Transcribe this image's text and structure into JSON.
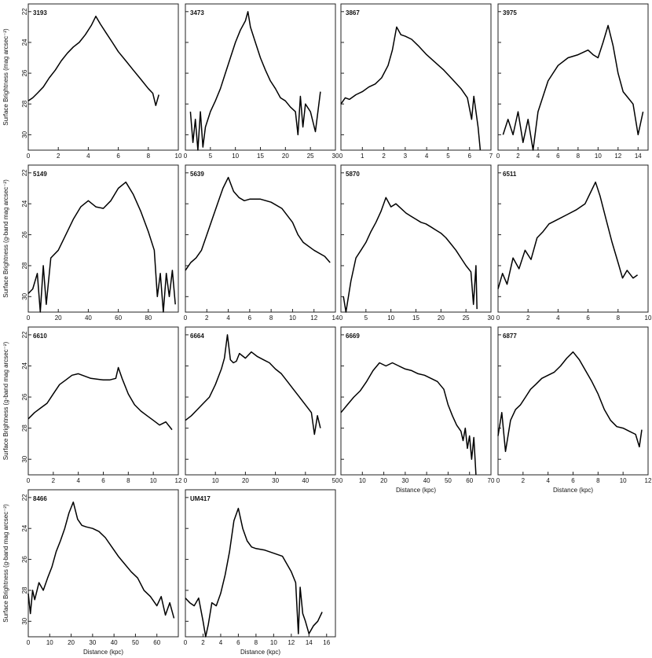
{
  "chart_data": [
    {
      "type": "line",
      "label": "3193",
      "xlim": [
        0,
        10
      ],
      "xticks": [
        0,
        2,
        4,
        6,
        8,
        10
      ],
      "ylim": [
        31,
        21.5
      ],
      "yticks": [
        22,
        24,
        26,
        28,
        30
      ],
      "ylabel": "Surface Brightness (mag arcsec⁻²)",
      "xlabel": "",
      "x": [
        0,
        0.3,
        0.6,
        1.0,
        1.4,
        1.8,
        2.2,
        2.6,
        3.0,
        3.4,
        3.8,
        4.2,
        4.5,
        4.8,
        5.2,
        5.6,
        6.0,
        6.5,
        7.0,
        7.5,
        8.0,
        8.3,
        8.5,
        8.7
      ],
      "y": [
        27.8,
        27.6,
        27.3,
        26.9,
        26.3,
        25.8,
        25.2,
        24.7,
        24.3,
        24.0,
        23.5,
        22.9,
        22.3,
        22.8,
        23.4,
        24.0,
        24.6,
        25.2,
        25.8,
        26.4,
        27.0,
        27.3,
        28.1,
        27.4
      ]
    },
    {
      "type": "line",
      "label": "3473",
      "xlim": [
        0,
        30
      ],
      "xticks": [
        0,
        5,
        10,
        15,
        20,
        25,
        30
      ],
      "ylim": [
        31,
        21.5
      ],
      "yticks": [
        22,
        24,
        26,
        28,
        30
      ],
      "ylabel": "",
      "xlabel": "",
      "x": [
        1,
        1.5,
        2,
        2.5,
        3,
        3.5,
        4,
        5,
        6,
        7,
        8,
        9,
        10,
        11,
        12,
        12.5,
        13,
        14,
        15,
        16,
        17,
        18,
        19,
        20,
        21,
        22,
        22.5,
        23,
        23.5,
        24,
        25,
        26,
        27
      ],
      "y": [
        28.5,
        30.5,
        29.0,
        31.0,
        28.5,
        30.8,
        29.5,
        28.5,
        27.8,
        27.0,
        26.0,
        25.0,
        24.0,
        23.2,
        22.6,
        22.0,
        23.0,
        24.0,
        25.0,
        25.8,
        26.5,
        27.0,
        27.6,
        27.8,
        28.2,
        28.5,
        30.0,
        27.5,
        29.5,
        28.0,
        28.5,
        29.8,
        27.2
      ]
    },
    {
      "type": "line",
      "label": "3867",
      "xlim": [
        0,
        7
      ],
      "xticks": [
        0,
        1,
        2,
        3,
        4,
        5,
        6,
        7
      ],
      "ylim": [
        31,
        21.5
      ],
      "yticks": [
        22,
        24,
        26,
        28,
        30
      ],
      "ylabel": "",
      "xlabel": "",
      "x": [
        0,
        0.2,
        0.4,
        0.7,
        1.0,
        1.3,
        1.6,
        1.9,
        2.2,
        2.4,
        2.6,
        2.8,
        3.0,
        3.3,
        3.6,
        4.0,
        4.4,
        4.8,
        5.2,
        5.6,
        5.9,
        6.1,
        6.2,
        6.4,
        6.5
      ],
      "y": [
        28.0,
        27.6,
        27.7,
        27.4,
        27.2,
        26.9,
        26.7,
        26.3,
        25.5,
        24.5,
        23.0,
        23.5,
        23.6,
        23.8,
        24.2,
        24.8,
        25.3,
        25.8,
        26.4,
        27.0,
        27.6,
        29.0,
        27.5,
        29.5,
        31.0
      ]
    },
    {
      "type": "line",
      "label": "3975",
      "xlim": [
        0,
        15
      ],
      "xticks": [
        0,
        2,
        4,
        6,
        8,
        10,
        12,
        14
      ],
      "ylim": [
        31,
        21.5
      ],
      "yticks": [
        22,
        24,
        26,
        28,
        30
      ],
      "ylabel": "",
      "xlabel": "",
      "x": [
        0.5,
        1,
        1.5,
        2,
        2.5,
        3,
        3.5,
        4,
        4.5,
        5,
        5.5,
        6,
        7,
        8,
        9,
        9.5,
        10,
        10.5,
        11,
        11.5,
        12,
        12.5,
        13,
        13.5,
        14,
        14.5
      ],
      "y": [
        30.0,
        29.0,
        30.0,
        28.5,
        30.5,
        29.0,
        31.0,
        28.5,
        27.5,
        26.5,
        26.0,
        25.5,
        25.0,
        24.8,
        24.5,
        24.8,
        25.0,
        24.0,
        22.9,
        24.2,
        26.0,
        27.2,
        27.6,
        28.0,
        30.0,
        28.5
      ]
    },
    {
      "type": "line",
      "label": "5149",
      "xlim": [
        0,
        100
      ],
      "xticks": [
        0,
        20,
        40,
        60,
        80
      ],
      "ylim": [
        31,
        21.5
      ],
      "yticks": [
        22,
        24,
        26,
        28,
        30
      ],
      "ylabel": "Surface Brightness (g-band mag arcsec⁻²)",
      "xlabel": "",
      "x": [
        0,
        3,
        6,
        8,
        10,
        12,
        15,
        20,
        25,
        30,
        35,
        40,
        45,
        50,
        55,
        60,
        65,
        70,
        75,
        80,
        84,
        86,
        88,
        90,
        92,
        94,
        96,
        98
      ],
      "y": [
        29.8,
        29.5,
        28.5,
        31.0,
        28.0,
        30.5,
        27.5,
        27.0,
        26.0,
        25.0,
        24.2,
        23.8,
        24.2,
        24.3,
        23.8,
        23.0,
        22.6,
        23.4,
        24.5,
        25.8,
        27.0,
        30.0,
        28.5,
        31.0,
        28.5,
        30.0,
        28.3,
        30.5
      ]
    },
    {
      "type": "line",
      "label": "5639",
      "xlim": [
        0,
        14
      ],
      "xticks": [
        0,
        2,
        4,
        6,
        8,
        10,
        12,
        14
      ],
      "ylim": [
        31,
        21.5
      ],
      "yticks": [
        22,
        24,
        26,
        28,
        30
      ],
      "ylabel": "",
      "xlabel": "",
      "x": [
        0,
        0.5,
        1,
        1.5,
        2,
        2.5,
        3,
        3.5,
        4,
        4.5,
        5,
        5.5,
        6,
        7,
        8,
        9,
        10,
        10.5,
        11,
        12,
        13,
        13.5
      ],
      "y": [
        28.3,
        27.8,
        27.5,
        27.0,
        26.0,
        25.0,
        24.0,
        23.0,
        22.3,
        23.2,
        23.6,
        23.8,
        23.7,
        23.7,
        23.9,
        24.3,
        25.2,
        26.0,
        26.5,
        27.0,
        27.4,
        27.8
      ]
    },
    {
      "type": "line",
      "label": "5870",
      "xlim": [
        0,
        30
      ],
      "xticks": [
        0,
        5,
        10,
        15,
        20,
        25,
        30
      ],
      "ylim": [
        31,
        21.5
      ],
      "yticks": [
        22,
        24,
        26,
        28,
        30
      ],
      "ylabel": "",
      "xlabel": "",
      "x": [
        0.5,
        1,
        2,
        3,
        4,
        5,
        6,
        7,
        8,
        9,
        10,
        11,
        12,
        13,
        14,
        15,
        16,
        17,
        18,
        19,
        20,
        21,
        22,
        23,
        24,
        25,
        26,
        26.5,
        27,
        27.2
      ],
      "y": [
        30.0,
        31.0,
        29.0,
        27.5,
        27.0,
        26.5,
        25.8,
        25.2,
        24.5,
        23.6,
        24.2,
        24.0,
        24.3,
        24.6,
        24.8,
        25.0,
        25.2,
        25.3,
        25.5,
        25.7,
        25.9,
        26.2,
        26.6,
        27.0,
        27.5,
        28.0,
        28.4,
        30.5,
        28.0,
        30.8
      ]
    },
    {
      "type": "line",
      "label": "6511",
      "xlim": [
        0,
        10
      ],
      "xticks": [
        0,
        2,
        4,
        6,
        8,
        10
      ],
      "ylim": [
        31,
        21.5
      ],
      "yticks": [
        22,
        24,
        26,
        28,
        30
      ],
      "ylabel": "",
      "xlabel": "",
      "x": [
        0,
        0.3,
        0.6,
        1.0,
        1.4,
        1.8,
        2.2,
        2.6,
        3.0,
        3.4,
        4.0,
        4.6,
        5.2,
        5.8,
        6.2,
        6.5,
        6.8,
        7.2,
        7.6,
        8.0,
        8.3,
        8.6,
        9.0,
        9.3
      ],
      "y": [
        29.5,
        28.5,
        29.2,
        27.5,
        28.2,
        27.0,
        27.6,
        26.2,
        25.8,
        25.3,
        25.0,
        24.7,
        24.4,
        24.0,
        23.2,
        22.6,
        23.5,
        25.0,
        26.5,
        27.8,
        28.8,
        28.3,
        28.8,
        28.6
      ]
    },
    {
      "type": "line",
      "label": "6610",
      "xlim": [
        0,
        12
      ],
      "xticks": [
        0,
        2,
        4,
        6,
        8,
        10,
        12
      ],
      "ylim": [
        31,
        21.5
      ],
      "yticks": [
        22,
        24,
        26,
        28,
        30
      ],
      "ylabel": "Surface Brightness (g-band mag arcsec⁻²)",
      "xlabel": "",
      "x": [
        0,
        0.5,
        1,
        1.5,
        2,
        2.5,
        3,
        3.5,
        4,
        5,
        6,
        6.5,
        7,
        7.2,
        7.5,
        8,
        8.5,
        9,
        9.5,
        10,
        10.5,
        11,
        11.5
      ],
      "y": [
        27.4,
        27.0,
        26.7,
        26.4,
        25.8,
        25.2,
        24.9,
        24.6,
        24.5,
        24.8,
        24.9,
        24.9,
        24.8,
        24.1,
        24.8,
        25.8,
        26.5,
        26.9,
        27.2,
        27.5,
        27.8,
        27.6,
        28.1
      ]
    },
    {
      "type": "line",
      "label": "6664",
      "xlim": [
        0,
        50
      ],
      "xticks": [
        0,
        10,
        20,
        30,
        40,
        50
      ],
      "ylim": [
        31,
        21.5
      ],
      "yticks": [
        22,
        24,
        26,
        28,
        30
      ],
      "ylabel": "",
      "xlabel": "",
      "x": [
        0,
        2,
        4,
        6,
        8,
        10,
        12,
        13,
        14,
        15,
        16,
        17,
        18,
        20,
        22,
        24,
        26,
        28,
        30,
        32,
        34,
        36,
        38,
        40,
        42,
        43,
        44,
        45
      ],
      "y": [
        27.5,
        27.2,
        26.8,
        26.4,
        26.0,
        25.2,
        24.2,
        23.5,
        22.0,
        23.6,
        23.8,
        23.7,
        23.2,
        23.5,
        23.1,
        23.4,
        23.6,
        23.8,
        24.2,
        24.5,
        25.0,
        25.5,
        26.0,
        26.5,
        27.0,
        28.4,
        27.2,
        28.0
      ]
    },
    {
      "type": "line",
      "label": "6669",
      "xlim": [
        0,
        70
      ],
      "xticks": [
        0,
        10,
        20,
        30,
        40,
        50,
        60,
        70
      ],
      "ylim": [
        31,
        21.5
      ],
      "yticks": [
        22,
        24,
        26,
        28,
        30
      ],
      "ylabel": "",
      "xlabel": "Distance (kpc)",
      "x": [
        0,
        3,
        6,
        9,
        12,
        15,
        18,
        21,
        24,
        27,
        30,
        33,
        36,
        39,
        42,
        45,
        48,
        50,
        52,
        54,
        56,
        57,
        58,
        59,
        60,
        61,
        62,
        63
      ],
      "y": [
        27.0,
        26.5,
        26.0,
        25.6,
        25.0,
        24.3,
        23.8,
        24.0,
        23.8,
        24.0,
        24.2,
        24.3,
        24.5,
        24.6,
        24.8,
        25.0,
        25.5,
        26.5,
        27.2,
        27.8,
        28.2,
        28.8,
        28.0,
        29.3,
        28.5,
        30.0,
        28.6,
        31.0
      ]
    },
    {
      "type": "line",
      "label": "6877",
      "xlim": [
        0,
        12
      ],
      "xticks": [
        0,
        2,
        4,
        6,
        8,
        10,
        12
      ],
      "ylim": [
        31,
        21.5
      ],
      "yticks": [
        22,
        24,
        26,
        28,
        30
      ],
      "ylabel": "",
      "xlabel": "Distance (kpc)",
      "x": [
        0,
        0.3,
        0.6,
        1.0,
        1.4,
        1.8,
        2.2,
        2.6,
        3.0,
        3.5,
        4.0,
        4.5,
        5.0,
        5.5,
        6.0,
        6.5,
        7.0,
        7.5,
        8.0,
        8.5,
        9.0,
        9.5,
        10.0,
        10.5,
        11.0,
        11.3,
        11.5
      ],
      "y": [
        28.5,
        27.0,
        29.5,
        27.5,
        26.8,
        26.5,
        26.0,
        25.5,
        25.2,
        24.8,
        24.6,
        24.4,
        24.0,
        23.5,
        23.1,
        23.6,
        24.3,
        25.0,
        25.8,
        26.8,
        27.5,
        27.9,
        28.0,
        28.2,
        28.4,
        29.2,
        28.1
      ]
    },
    {
      "type": "line",
      "label": "8466",
      "xlim": [
        0,
        70
      ],
      "xticks": [
        0,
        10,
        20,
        30,
        40,
        50,
        60
      ],
      "ylim": [
        31,
        21.5
      ],
      "yticks": [
        22,
        24,
        26,
        28,
        30
      ],
      "ylabel": "Surface Brightness (g-band mag arcsec⁻²)",
      "xlabel": "Distance (kpc)",
      "x": [
        0,
        1,
        2,
        3,
        5,
        7,
        9,
        11,
        13,
        15,
        17,
        19,
        21,
        23,
        25,
        27,
        30,
        33,
        36,
        39,
        42,
        45,
        48,
        51,
        54,
        57,
        60,
        62,
        64,
        66,
        68
      ],
      "y": [
        28.2,
        29.5,
        28.0,
        28.6,
        27.5,
        28.0,
        27.2,
        26.5,
        25.5,
        24.8,
        24.0,
        23.0,
        22.3,
        23.4,
        23.8,
        23.9,
        24.0,
        24.2,
        24.6,
        25.2,
        25.8,
        26.3,
        26.8,
        27.2,
        28.0,
        28.4,
        29.0,
        28.4,
        29.6,
        28.8,
        29.8
      ]
    },
    {
      "type": "line",
      "label": "UM417",
      "xlim": [
        0,
        17
      ],
      "xticks": [
        0,
        2,
        4,
        6,
        8,
        10,
        12,
        14,
        16
      ],
      "ylim": [
        31,
        21.5
      ],
      "yticks": [
        22,
        24,
        26,
        28,
        30
      ],
      "ylabel": "",
      "xlabel": "Distance (kpc)",
      "x": [
        0,
        0.5,
        1,
        1.5,
        2,
        2.3,
        2.6,
        3,
        3.5,
        4,
        4.5,
        5,
        5.5,
        6,
        6.5,
        7,
        7.5,
        8,
        9,
        10,
        11,
        12,
        12.5,
        12.8,
        13,
        13.3,
        13.6,
        14,
        14.5,
        15,
        15.5
      ],
      "y": [
        28.5,
        28.8,
        29.0,
        28.5,
        30.0,
        31.0,
        30.2,
        28.8,
        29.0,
        28.2,
        27.0,
        25.5,
        23.5,
        22.7,
        24.0,
        24.8,
        25.2,
        25.3,
        25.4,
        25.6,
        25.8,
        26.8,
        27.5,
        30.8,
        27.8,
        29.5,
        30.0,
        30.8,
        30.3,
        30.0,
        29.4
      ]
    }
  ]
}
